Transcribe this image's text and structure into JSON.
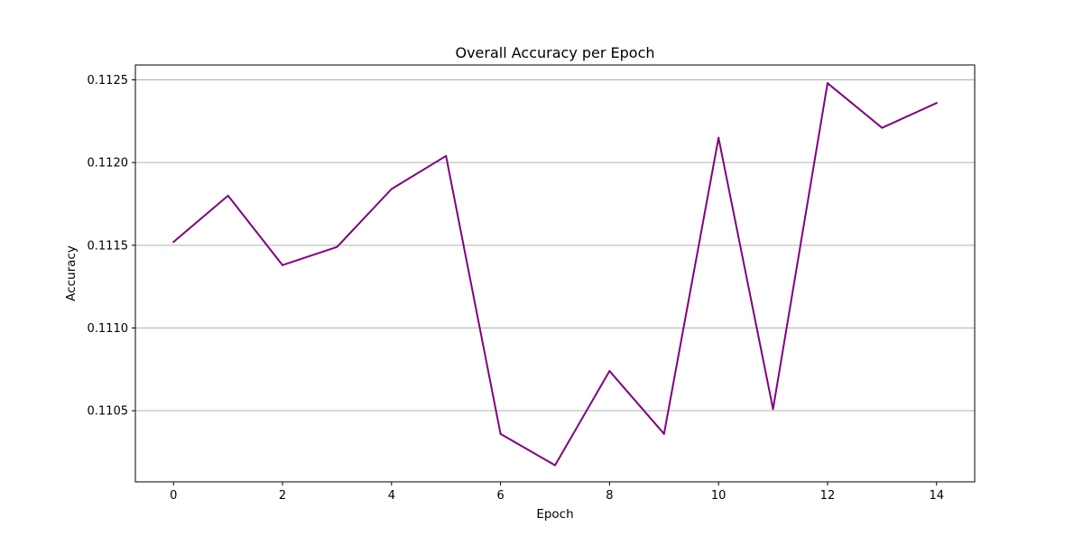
{
  "chart_data": {
    "type": "line",
    "title": "Overall Accuracy per Epoch",
    "xlabel": "Epoch",
    "ylabel": "Accuracy",
    "xlim": [
      -0.7,
      14.7
    ],
    "ylim": [
      0.11007,
      0.11259
    ],
    "x_ticks": [
      0,
      2,
      4,
      6,
      8,
      10,
      12,
      14
    ],
    "y_ticks": [
      0.1105,
      0.111,
      0.1115,
      0.112,
      0.1125
    ],
    "y_tick_labels": [
      "0.1105",
      "0.1110",
      "0.1115",
      "0.1120",
      "0.1125"
    ],
    "grid": "y-only",
    "series": [
      {
        "color": "#800080",
        "x": [
          0,
          1,
          2,
          3,
          4,
          5,
          6,
          7,
          8,
          9,
          10,
          11,
          12,
          13,
          14
        ],
        "y": [
          0.11152,
          0.1118,
          0.11138,
          0.11149,
          0.11184,
          0.11204,
          0.11036,
          0.11017,
          0.11074,
          0.11036,
          0.11215,
          0.11051,
          0.11248,
          0.11221,
          0.11236
        ]
      }
    ]
  }
}
